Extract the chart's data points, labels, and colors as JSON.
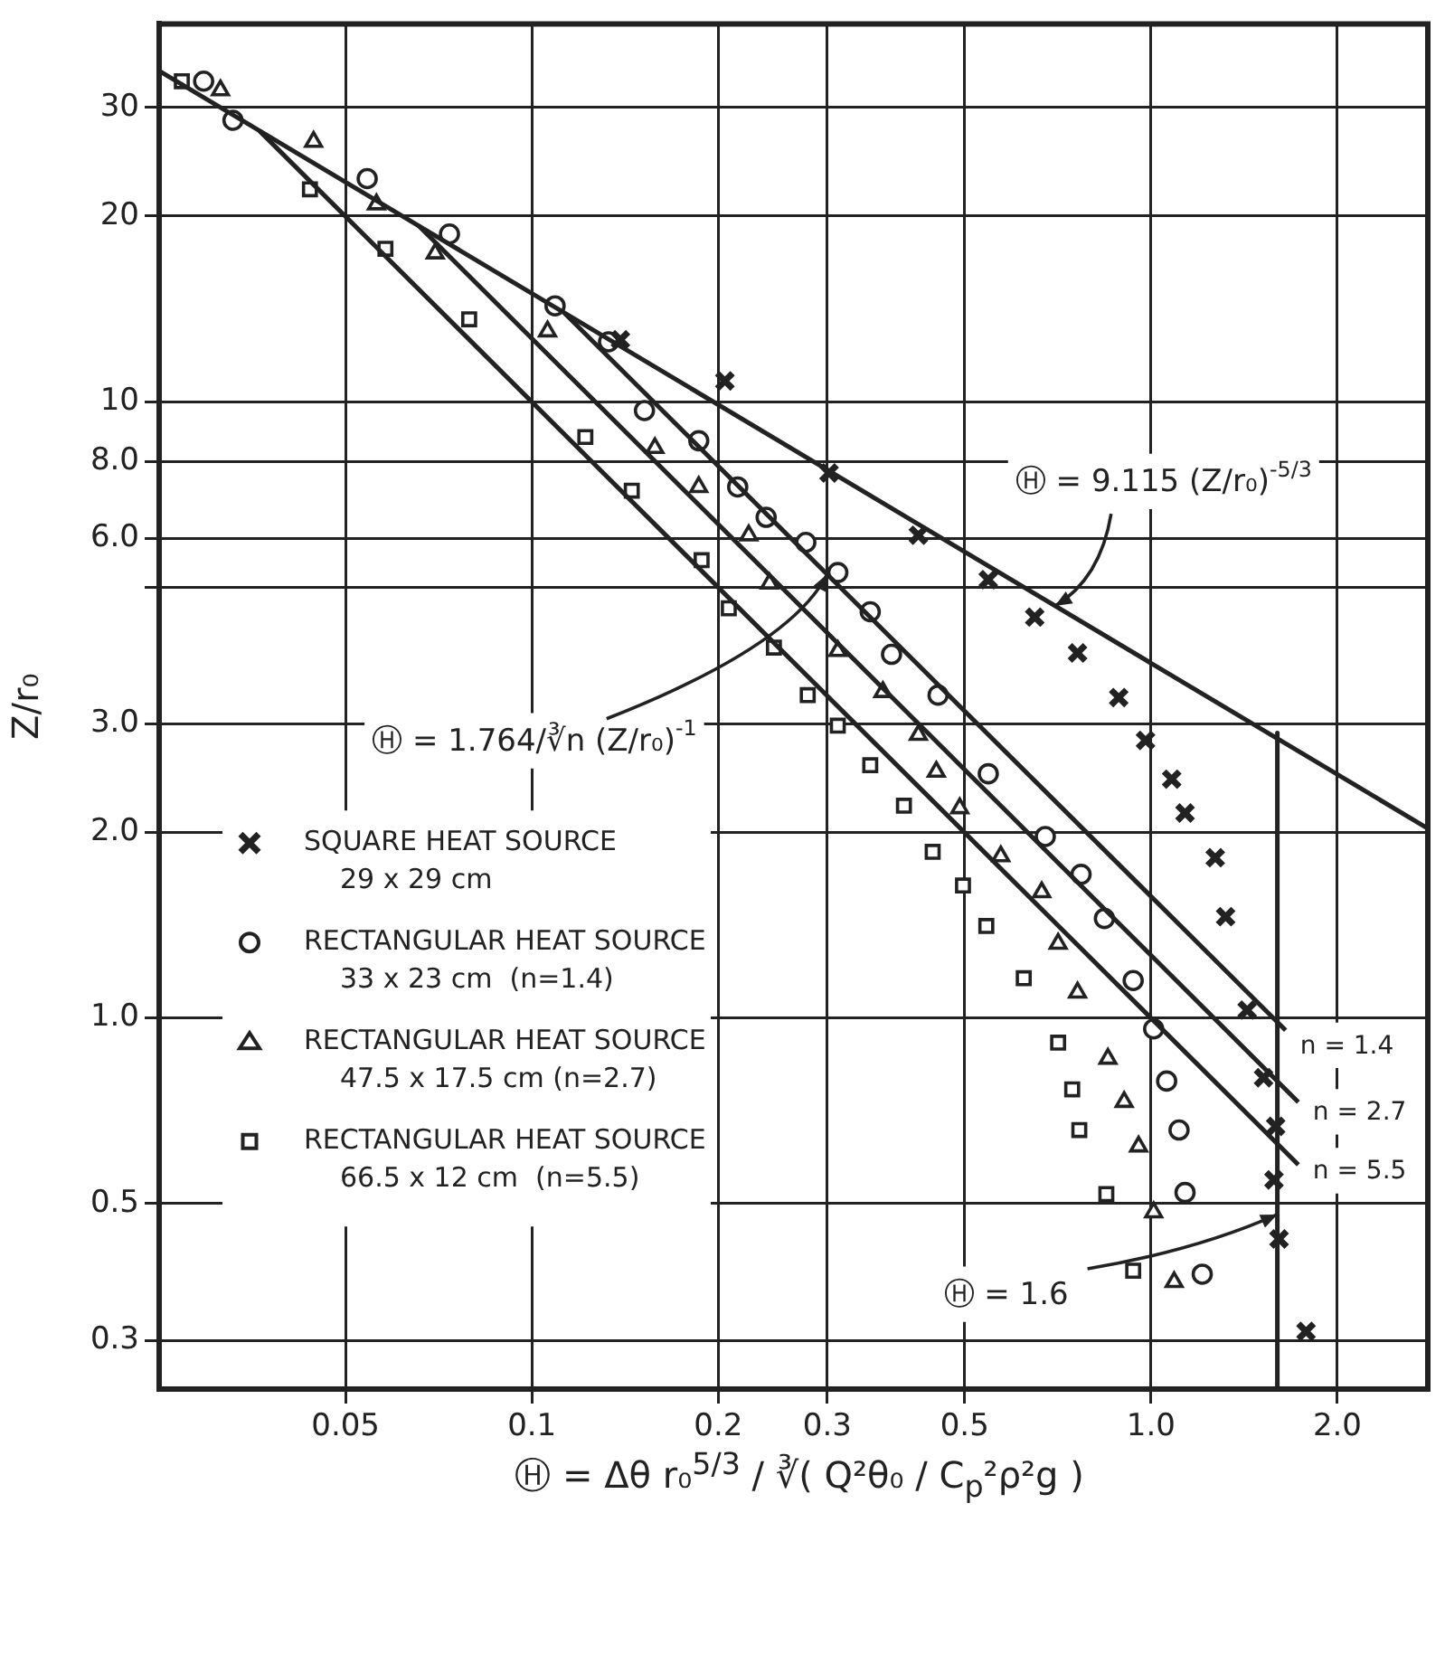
{
  "chart_data": {
    "type": "scatter",
    "xlabel": "Ⓗ = Δθ r₀$^{5/3}$ / ∛( Q²θ₀ / C$_{p}$²ρ²g )",
    "ylabel": "Z/r₀",
    "log": "xy",
    "xlim": [
      0.025,
      2.8
    ],
    "ylim": [
      0.25,
      41
    ],
    "xticks": [
      0.05,
      0.1,
      0.2,
      0.3,
      0.5,
      {
        "value": 1,
        "label": "1.0"
      },
      {
        "value": 2,
        "label": "2.0"
      }
    ],
    "yticks": [
      0.3,
      0.5,
      {
        "value": 1,
        "label": "1.0"
      },
      {
        "value": 2,
        "label": "2.0"
      },
      {
        "value": 3,
        "label": "3.0"
      },
      {
        "value": 5,
        "label": null
      },
      {
        "value": 6,
        "label": "6.0"
      },
      {
        "value": 8,
        "label": "8.0"
      },
      10,
      20,
      30
    ],
    "grid": true,
    "legend": "left",
    "annotations": [
      {
        "text": "Ⓗ = 9.115 (Z/r₀)$^{-5/3}$",
        "x": 0.7,
        "y": 4.66
      },
      {
        "text": "Ⓗ = 1.764/∛n (Z/r₀)$^{-1}$",
        "x": 0.3,
        "y": 5.25
      },
      {
        "text": "n = 1.4",
        "x": 1.65,
        "y": 0.955
      },
      {
        "text": "n = 2.7",
        "x": 1.73,
        "y": 0.73
      },
      {
        "text": "n = 5.5",
        "x": 1.73,
        "y": 0.578
      },
      {
        "text": "Ⓗ = 1.6",
        "x": 1.6,
        "y": 0.48
      }
    ],
    "series": [
      {
        "type": "line",
        "color": "#222222",
        "marker": "none",
        "x": [
          0.025,
          2.8
        ],
        "values": [
          34.4,
          2.03
        ]
      },
      {
        "type": "line",
        "color": "#222222",
        "marker": "none",
        "x": [
          0.113,
          1.65
        ],
        "values": [
          13.9,
          0.955
        ]
      },
      {
        "type": "line",
        "color": "#222222",
        "marker": "none",
        "x": [
          0.0656,
          1.73
        ],
        "values": [
          19.3,
          0.73
        ]
      },
      {
        "type": "line",
        "color": "#222222",
        "marker": "none",
        "x": [
          0.0363,
          1.73
        ],
        "values": [
          27.5,
          0.578
        ]
      },
      {
        "type": "line",
        "color": "#222222",
        "marker": "none",
        "x": [
          1.6,
          1.6
        ],
        "values": [
          2.9,
          0.25
        ]
      },
      {
        "name": "SQUARE HEAT SOURCE\n29 x 29 cm",
        "color": "#222222",
        "marker": "cross",
        "x": [
          0.139,
          0.205,
          0.302,
          0.421,
          0.546,
          0.649,
          0.761,
          0.887,
          0.98,
          1.08,
          1.135,
          1.27,
          1.32,
          1.43,
          1.52,
          1.59,
          1.58,
          1.61,
          1.78
        ],
        "values": [
          12.6,
          10.8,
          7.66,
          6.07,
          5.14,
          4.47,
          3.91,
          3.31,
          2.82,
          2.44,
          2.15,
          1.82,
          1.46,
          1.03,
          0.8,
          0.667,
          0.546,
          0.438,
          0.31
        ]
      },
      {
        "name": "RECTANGULAR HEAT SOURCE\n33 x 23 cm  (n=1.4)",
        "color": "#222222",
        "marker": "circle",
        "x": [
          0.0295,
          0.0329,
          0.0542,
          0.0736,
          0.109,
          0.133,
          0.152,
          0.186,
          0.215,
          0.239,
          0.277,
          0.312,
          0.352,
          0.381,
          0.453,
          0.546,
          0.675,
          0.771,
          0.841,
          0.936,
          1.01,
          1.06,
          1.11,
          1.135,
          1.21
        ],
        "values": [
          33.1,
          28.6,
          23.0,
          18.7,
          14.3,
          12.5,
          9.67,
          8.64,
          7.27,
          6.49,
          5.91,
          5.28,
          4.56,
          3.89,
          3.34,
          2.49,
          1.97,
          1.71,
          1.45,
          1.15,
          0.96,
          0.79,
          0.658,
          0.521,
          0.384
        ]
      },
      {
        "name": "RECTANGULAR HEAT SOURCE\n47.5 x 17.5 cm (n=2.7)",
        "color": "#222222",
        "marker": "triangle",
        "x": [
          0.0314,
          0.0444,
          0.0561,
          0.0698,
          0.106,
          0.158,
          0.186,
          0.224,
          0.242,
          0.312,
          0.369,
          0.421,
          0.45,
          0.491,
          0.572,
          0.666,
          0.708,
          0.761,
          0.852,
          0.905,
          0.955,
          1.01,
          1.09
        ],
        "values": [
          32.0,
          26.4,
          20.9,
          17.4,
          13.0,
          8.41,
          7.27,
          6.07,
          5.07,
          3.94,
          3.38,
          2.88,
          2.51,
          2.19,
          1.83,
          1.6,
          1.32,
          1.1,
          0.859,
          0.731,
          0.619,
          0.484,
          0.373
        ]
      },
      {
        "name": "RECTANGULAR HEAT SOURCE\n66.5 x 12 cm  (n=5.5)",
        "color": "#222222",
        "marker": "square",
        "x": [
          0.0272,
          0.0438,
          0.058,
          0.0792,
          0.122,
          0.145,
          0.188,
          0.208,
          0.246,
          0.279,
          0.312,
          0.352,
          0.399,
          0.444,
          0.497,
          0.542,
          0.623,
          0.708,
          0.746,
          0.766,
          0.847,
          0.936
        ],
        "values": [
          33.1,
          22.1,
          17.7,
          13.6,
          8.76,
          7.17,
          5.53,
          4.62,
          3.99,
          3.34,
          2.98,
          2.57,
          2.21,
          1.86,
          1.64,
          1.41,
          1.16,
          0.912,
          0.766,
          0.658,
          0.518,
          0.389
        ]
      }
    ]
  }
}
